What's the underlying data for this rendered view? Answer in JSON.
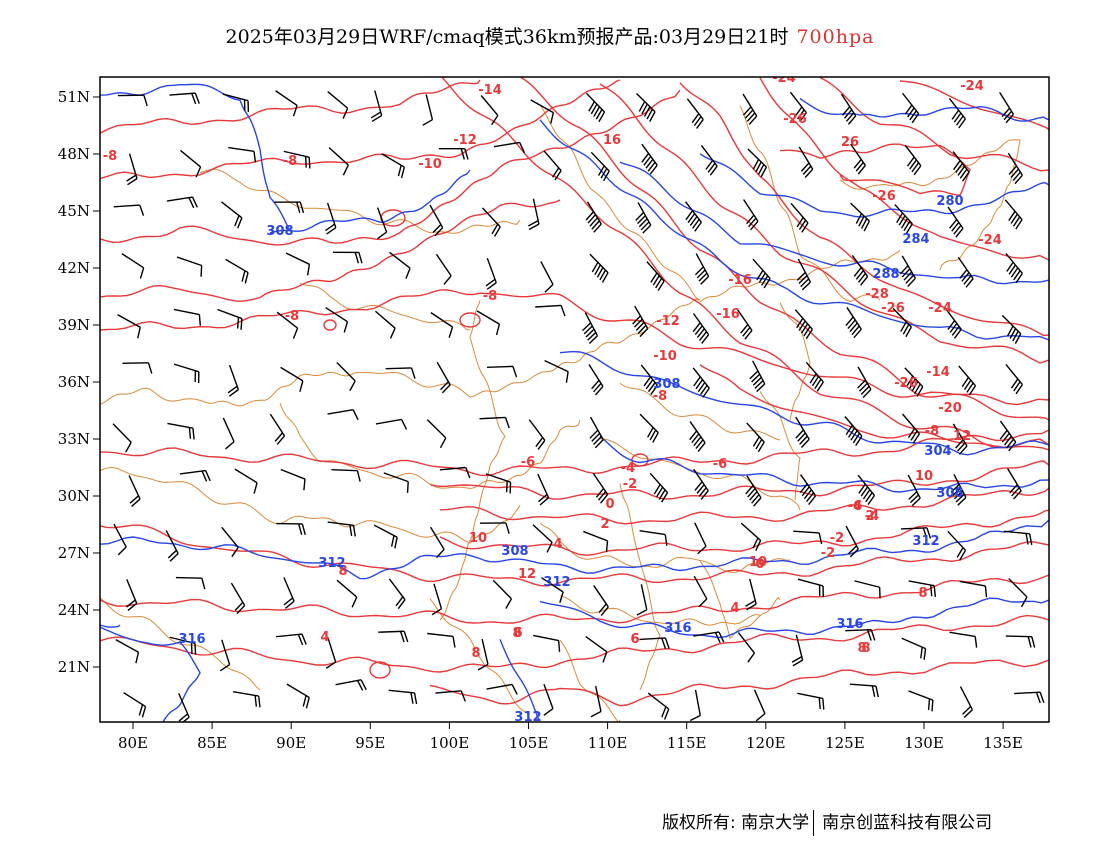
{
  "title": {
    "main": "2025年03月29日WRF/cmaq模式36km预报产品:03月29日21时",
    "level": "700hpa"
  },
  "axes": {
    "lon_labels": [
      "80E",
      "85E",
      "90E",
      "95E",
      "100E",
      "105E",
      "110E",
      "115E",
      "120E",
      "125E",
      "130E",
      "135E"
    ],
    "lat_labels": [
      "51N",
      "48N",
      "45N",
      "42N",
      "39N",
      "36N",
      "33N",
      "30N",
      "27N",
      "24N",
      "21N"
    ]
  },
  "colors": {
    "temperature": "#e8383a",
    "height": "#2846e6",
    "border": "#d98a3a",
    "wind": "#000000",
    "frame": "#000000"
  },
  "contour_labels": {
    "temperature": [
      "-8",
      "-8",
      "-8",
      "-14",
      "-12",
      "-10",
      "16",
      "-8",
      "-12",
      "-10",
      "-8",
      "-16",
      "-16",
      "-6",
      "-4",
      "-2",
      "0",
      "2",
      "4",
      "-6",
      "-4",
      "2",
      "8",
      "10",
      "12",
      "10",
      "8",
      "4",
      "6",
      "8",
      "6",
      "-24",
      "-24",
      "-26",
      "26",
      "-26",
      "-24",
      "-28",
      "-26",
      "-24",
      "-26",
      "-14",
      "-20",
      "12",
      "-8",
      "10",
      "-6",
      "-4",
      "-2",
      "-2",
      "0",
      "8",
      "4",
      "6",
      "8",
      "8"
    ],
    "height": [
      "308",
      "280",
      "284",
      "288",
      "308",
      "304",
      "308",
      "312",
      "312",
      "308",
      "312",
      "316",
      "316",
      "316",
      "312"
    ]
  },
  "footer": {
    "left": "版权所有: 南京大学",
    "right": "南京创蓝科技有限公司"
  }
}
